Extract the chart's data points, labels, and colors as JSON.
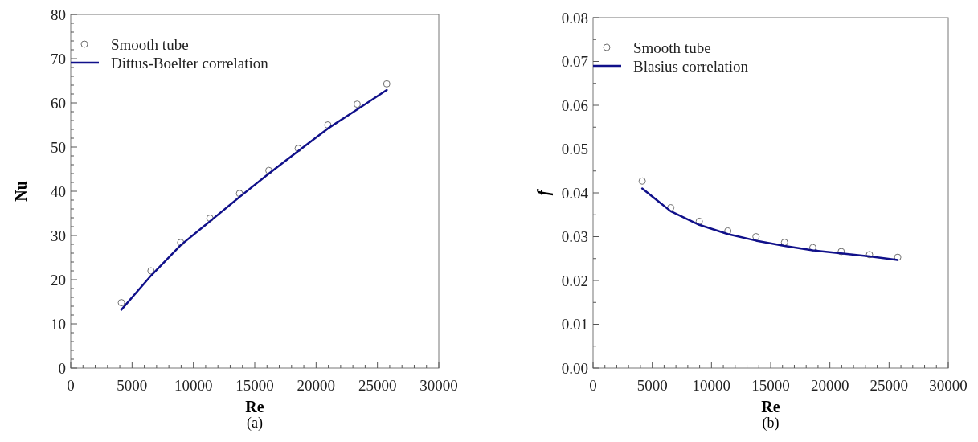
{
  "chart_data": [
    {
      "type": "scatter",
      "title": "(a)",
      "xlabel": "Re",
      "ylabel": "Nu",
      "legend": "top left",
      "xlim": [
        0,
        30000
      ],
      "ylim": [
        0,
        80
      ],
      "xticks": [
        0,
        {
          "value": 1000,
          "label": null
        },
        {
          "value": 2000,
          "label": null
        },
        {
          "value": 3000,
          "label": null
        },
        {
          "value": 4000,
          "label": null
        },
        5000,
        {
          "value": 6000,
          "label": null
        },
        {
          "value": 7000,
          "label": null
        },
        {
          "value": 8000,
          "label": null
        },
        {
          "value": 9000,
          "label": null
        },
        10000,
        {
          "value": 11000,
          "label": null
        },
        {
          "value": 12000,
          "label": null
        },
        {
          "value": 13000,
          "label": null
        },
        {
          "value": 14000,
          "label": null
        },
        15000,
        {
          "value": 16000,
          "label": null
        },
        {
          "value": 17000,
          "label": null
        },
        {
          "value": 18000,
          "label": null
        },
        {
          "value": 19000,
          "label": null
        },
        20000,
        {
          "value": 21000,
          "label": null
        },
        {
          "value": 22000,
          "label": null
        },
        {
          "value": 23000,
          "label": null
        },
        {
          "value": 24000,
          "label": null
        },
        25000,
        {
          "value": 26000,
          "label": null
        },
        {
          "value": 27000,
          "label": null
        },
        {
          "value": 28000,
          "label": null
        },
        {
          "value": 29000,
          "label": null
        },
        30000
      ],
      "yticks": [
        0,
        {
          "value": 2,
          "label": null
        },
        {
          "value": 4,
          "label": null
        },
        {
          "value": 6,
          "label": null
        },
        {
          "value": 8,
          "label": null
        },
        10,
        {
          "value": 12,
          "label": null
        },
        {
          "value": 14,
          "label": null
        },
        {
          "value": 16,
          "label": null
        },
        {
          "value": 18,
          "label": null
        },
        20,
        {
          "value": 22,
          "label": null
        },
        {
          "value": 24,
          "label": null
        },
        {
          "value": 26,
          "label": null
        },
        {
          "value": 28,
          "label": null
        },
        30,
        {
          "value": 32,
          "label": null
        },
        {
          "value": 34,
          "label": null
        },
        {
          "value": 36,
          "label": null
        },
        {
          "value": 38,
          "label": null
        },
        40,
        {
          "value": 42,
          "label": null
        },
        {
          "value": 44,
          "label": null
        },
        {
          "value": 46,
          "label": null
        },
        {
          "value": 48,
          "label": null
        },
        50,
        {
          "value": 52,
          "label": null
        },
        {
          "value": 54,
          "label": null
        },
        {
          "value": 56,
          "label": null
        },
        {
          "value": 58,
          "label": null
        },
        60,
        {
          "value": 62,
          "label": null
        },
        {
          "value": 64,
          "label": null
        },
        {
          "value": 66,
          "label": null
        },
        {
          "value": 68,
          "label": null
        },
        70,
        {
          "value": 72,
          "label": null
        },
        {
          "value": 74,
          "label": null
        },
        {
          "value": 76,
          "label": null
        },
        {
          "value": 78,
          "label": null
        },
        80
      ],
      "series": [
        {
          "name": "Smooth tube",
          "marker": "circle",
          "color": "#707070",
          "x": [
            4130,
            6540,
            8960,
            11350,
            13760,
            16150,
            18540,
            20960,
            23350,
            25760
          ],
          "values": [
            14.8,
            22.0,
            28.4,
            33.9,
            39.5,
            44.7,
            49.7,
            55.0,
            59.7,
            64.3
          ]
        },
        {
          "name": "Dittus-Boelter correlation",
          "type": "line",
          "marker": "none",
          "line_style": "solid",
          "color": "#10108a",
          "x": [
            4130,
            6540,
            8960,
            11350,
            13760,
            16150,
            18540,
            20960,
            23350,
            25760
          ],
          "values": [
            13.2,
            20.9,
            27.8,
            33.2,
            38.7,
            44.0,
            49.1,
            54.2,
            58.5,
            62.9
          ]
        }
      ]
    },
    {
      "type": "scatter",
      "title": "(b)",
      "xlabel": "Re",
      "ylabel": "f",
      "legend": "top left",
      "xlim": [
        0,
        30000
      ],
      "ylim": [
        0,
        0.08
      ],
      "xticks": [
        0,
        {
          "value": 1000,
          "label": null
        },
        {
          "value": 2000,
          "label": null
        },
        {
          "value": 3000,
          "label": null
        },
        {
          "value": 4000,
          "label": null
        },
        5000,
        {
          "value": 6000,
          "label": null
        },
        {
          "value": 7000,
          "label": null
        },
        {
          "value": 8000,
          "label": null
        },
        {
          "value": 9000,
          "label": null
        },
        10000,
        {
          "value": 11000,
          "label": null
        },
        {
          "value": 12000,
          "label": null
        },
        {
          "value": 13000,
          "label": null
        },
        {
          "value": 14000,
          "label": null
        },
        15000,
        {
          "value": 16000,
          "label": null
        },
        {
          "value": 17000,
          "label": null
        },
        {
          "value": 18000,
          "label": null
        },
        {
          "value": 19000,
          "label": null
        },
        20000,
        {
          "value": 21000,
          "label": null
        },
        {
          "value": 22000,
          "label": null
        },
        {
          "value": 23000,
          "label": null
        },
        {
          "value": 24000,
          "label": null
        },
        25000,
        {
          "value": 26000,
          "label": null
        },
        {
          "value": 27000,
          "label": null
        },
        {
          "value": 28000,
          "label": null
        },
        {
          "value": 29000,
          "label": null
        },
        30000
      ],
      "yticks": [
        {
          "value": 0,
          "label": "0.00"
        },
        {
          "value": 0.005,
          "label": null
        },
        0.01,
        {
          "value": 0.015,
          "label": null
        },
        0.02,
        {
          "value": 0.025,
          "label": null
        },
        0.03,
        {
          "value": 0.035,
          "label": null
        },
        0.04,
        {
          "value": 0.045,
          "label": null
        },
        0.05,
        {
          "value": 0.055,
          "label": null
        },
        0.06,
        {
          "value": 0.065,
          "label": null
        },
        0.07,
        {
          "value": 0.075,
          "label": null
        },
        0.08
      ],
      "series": [
        {
          "name": "Smooth tube",
          "marker": "circle",
          "color": "#707070",
          "x": [
            4150,
            6560,
            8970,
            11380,
            13760,
            16170,
            18560,
            20960,
            23350,
            25730
          ],
          "values": [
            0.0427,
            0.0366,
            0.0335,
            0.0313,
            0.03,
            0.0287,
            0.0275,
            0.0266,
            0.0259,
            0.0253
          ]
        },
        {
          "name": "Blasius correlation",
          "type": "line",
          "marker": "none",
          "line_style": "solid",
          "color": "#10108a",
          "x": [
            4150,
            6560,
            8970,
            11380,
            13760,
            16170,
            18560,
            20960,
            23350,
            25730
          ],
          "values": [
            0.041,
            0.0358,
            0.0327,
            0.0306,
            0.0291,
            0.0279,
            0.0269,
            0.0262,
            0.0255,
            0.0247
          ]
        }
      ]
    }
  ]
}
